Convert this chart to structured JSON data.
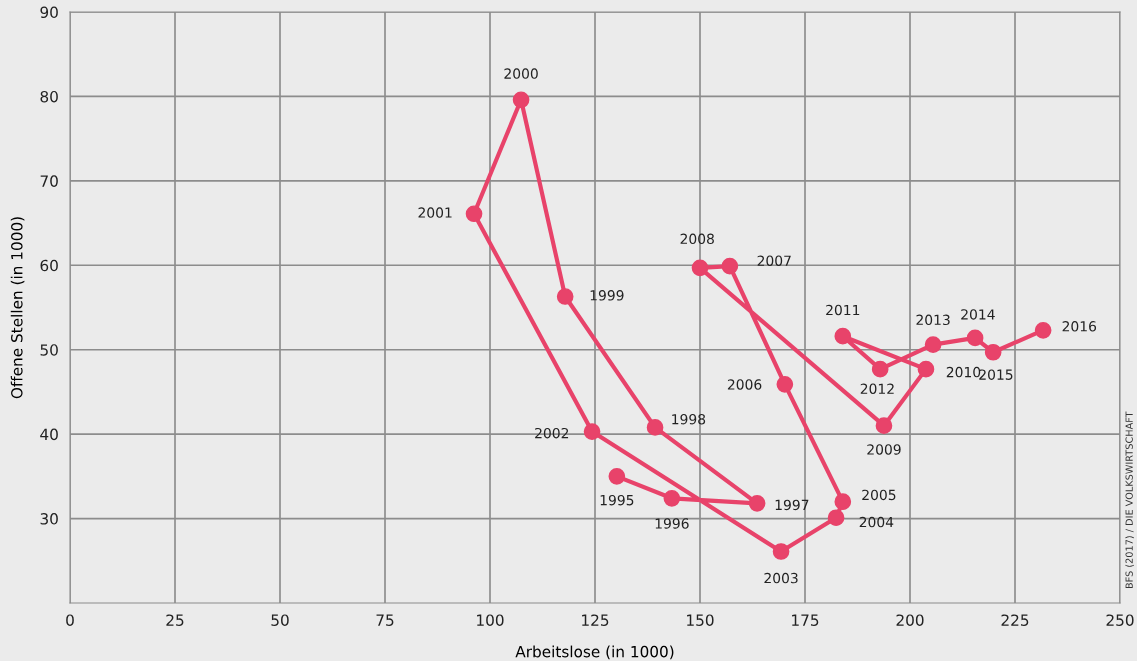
{
  "chart_data": {
    "type": "line",
    "xlabel": "Arbeitslose (in 1000)",
    "ylabel": "Offene Stellen (in 1000)",
    "xlim": [
      0,
      250
    ],
    "xticks": [
      0,
      25,
      50,
      75,
      100,
      125,
      150,
      175,
      200,
      225,
      250
    ],
    "ylim": [
      20,
      90
    ],
    "yticks": [
      30,
      40,
      50,
      60,
      70,
      80,
      90
    ],
    "grid": true,
    "marker": "circle",
    "line_style": "solid",
    "x": [
      130.2,
      143.3,
      163.6,
      139.3,
      117.9,
      107.4,
      96.2,
      124.3,
      169.3,
      182.4,
      184.0,
      170.2,
      157.1,
      150.0,
      193.8,
      203.8,
      184.0,
      192.9,
      205.5,
      215.5,
      219.8,
      231.7
    ],
    "series": [
      {
        "color": "#e8436a",
        "values": [
          35.0,
          32.4,
          31.8,
          40.8,
          56.3,
          79.6,
          66.1,
          40.3,
          26.1,
          30.1,
          32.0,
          45.9,
          59.9,
          59.7,
          41.0,
          47.7,
          51.6,
          47.7,
          50.6,
          51.4,
          49.7,
          52.3
        ]
      }
    ],
    "annotations": [
      {
        "text": "1995",
        "x": 130.2,
        "y": 35.0
      },
      {
        "text": "1996",
        "x": 143.3,
        "y": 32.4
      },
      {
        "text": "1997",
        "x": 163.6,
        "y": 31.8
      },
      {
        "text": "1998",
        "x": 139.3,
        "y": 40.8
      },
      {
        "text": "1999",
        "x": 117.9,
        "y": 56.3
      },
      {
        "text": "2000",
        "x": 107.4,
        "y": 79.6
      },
      {
        "text": "2001",
        "x": 96.2,
        "y": 66.1
      },
      {
        "text": "2002",
        "x": 124.3,
        "y": 40.3
      },
      {
        "text": "2003",
        "x": 169.3,
        "y": 26.1
      },
      {
        "text": "2004",
        "x": 182.4,
        "y": 30.1
      },
      {
        "text": "2005",
        "x": 184.0,
        "y": 32.0
      },
      {
        "text": "2006",
        "x": 170.2,
        "y": 45.9
      },
      {
        "text": "2007",
        "x": 157.1,
        "y": 59.9
      },
      {
        "text": "2008",
        "x": 150.0,
        "y": 59.7
      },
      {
        "text": "2009",
        "x": 193.8,
        "y": 41.0
      },
      {
        "text": "2010",
        "x": 203.8,
        "y": 47.7
      },
      {
        "text": "2011",
        "x": 184.0,
        "y": 51.6
      },
      {
        "text": "2012",
        "x": 192.9,
        "y": 47.7
      },
      {
        "text": "2013",
        "x": 205.5,
        "y": 50.6
      },
      {
        "text": "2014",
        "x": 215.5,
        "y": 51.4
      },
      {
        "text": "2015",
        "x": 219.8,
        "y": 49.7
      },
      {
        "text": "2016",
        "x": 231.7,
        "y": 52.3
      },
      "BFS (2017) / DIE VOLKSWIRTSCHAFT"
    ]
  }
}
